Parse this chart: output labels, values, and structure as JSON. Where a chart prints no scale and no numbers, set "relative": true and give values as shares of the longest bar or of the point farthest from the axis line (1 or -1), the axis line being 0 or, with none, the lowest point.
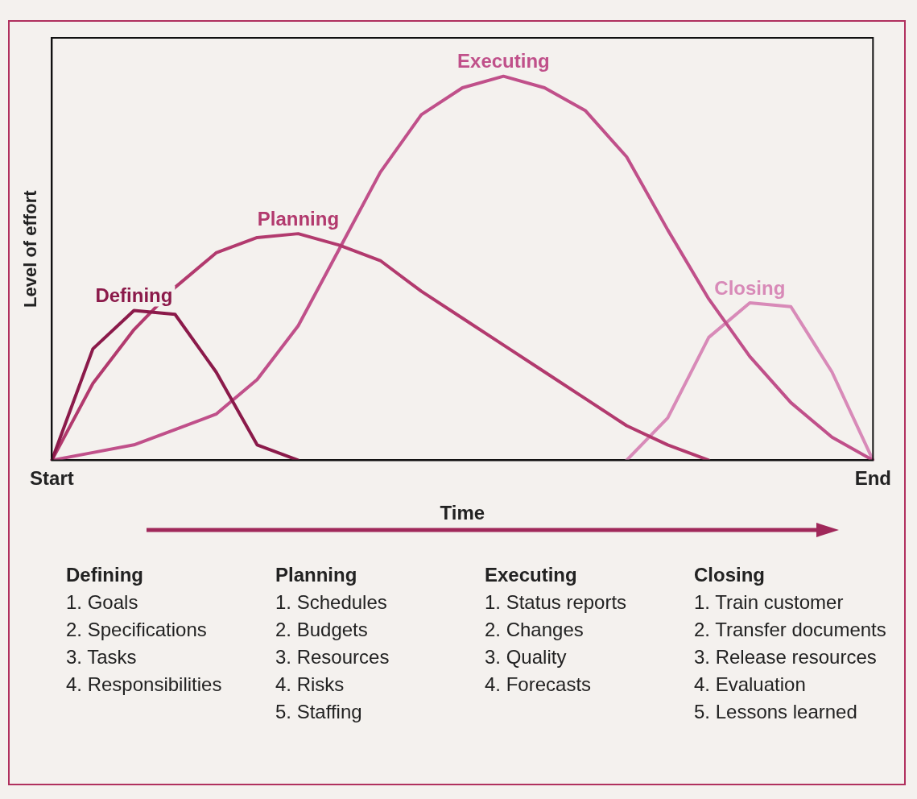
{
  "chart_data": {
    "type": "line",
    "relative": true,
    "xlabel": "Time",
    "ylabel": "Level of effort",
    "categories": [
      "Start",
      null,
      null,
      null,
      null,
      null,
      null,
      null,
      null,
      null,
      null,
      null,
      null,
      null,
      null,
      null,
      null,
      null,
      null,
      null,
      "End"
    ],
    "marker": "none",
    "line_style": "solid",
    "grid": false,
    "legend": false,
    "series": [
      {
        "name": "Defining",
        "color": "#8b1a4a",
        "values": [
          0,
          0.29,
          0.39,
          0.38,
          0.23,
          0.04,
          0,
          null,
          null,
          null,
          null,
          null,
          null,
          null,
          null,
          null,
          null,
          null,
          null,
          null,
          null
        ]
      },
      {
        "name": "Planning",
        "color": "#b23a6e",
        "values": [
          0,
          0.2,
          0.34,
          0.45,
          0.54,
          0.58,
          0.59,
          0.56,
          0.52,
          0.44,
          0.37,
          0.3,
          0.23,
          0.16,
          0.09,
          0.04,
          0,
          null,
          null,
          null,
          null
        ]
      },
      {
        "name": "Executing",
        "color": "#c0508a",
        "values": [
          0,
          0.02,
          0.04,
          0.08,
          0.12,
          0.21,
          0.35,
          0.55,
          0.75,
          0.9,
          0.97,
          1,
          0.97,
          0.91,
          0.79,
          0.6,
          0.42,
          0.27,
          0.15,
          0.06,
          0
        ]
      },
      {
        "name": "Closing",
        "color": "#d88ab8",
        "values": [
          null,
          null,
          null,
          null,
          null,
          null,
          null,
          null,
          null,
          null,
          null,
          null,
          null,
          null,
          0,
          0.11,
          0.32,
          0.41,
          0.4,
          0.23,
          0
        ]
      }
    ],
    "annotations": [
      "Defining\n1. Goals\n2. Specifications\n3. Tasks\n4. Responsibilities",
      "Planning\n1. Schedules\n2. Budgets\n3. Resources\n4. Risks\n5. Staffing",
      "Executing\n1. Status reports\n2. Changes\n3. Quality\n4. Forecasts",
      "Closing\n1. Train customer\n2. Transfer documents\n3. Release resources\n4. Evaluation\n5. Lessons learned"
    ]
  }
}
